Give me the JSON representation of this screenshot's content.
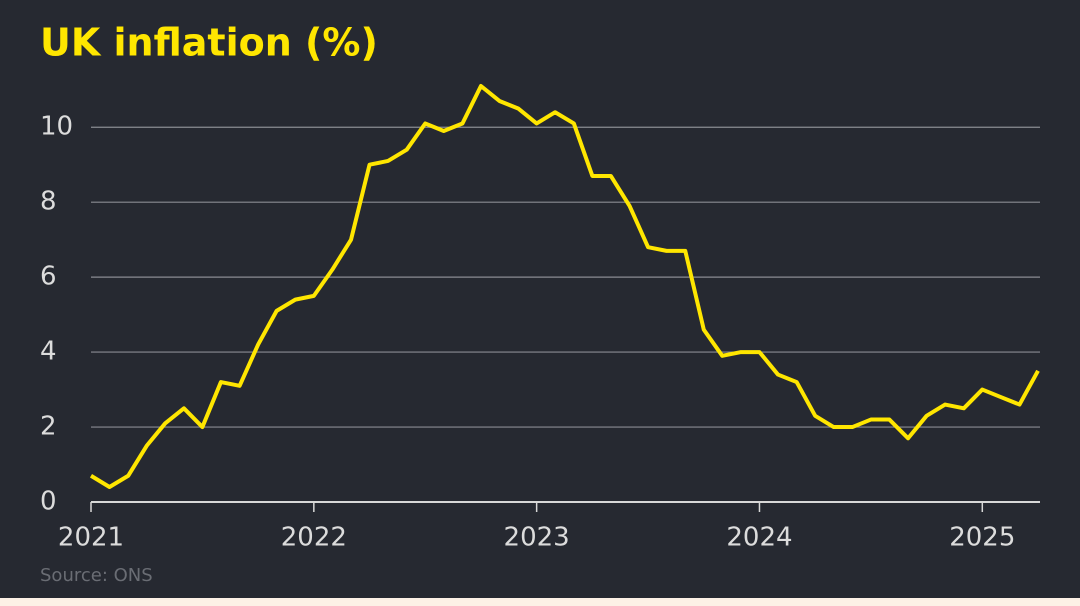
{
  "chart_data": {
    "type": "line",
    "title": "UK inflation (%)",
    "source": "Source: ONS",
    "x": [
      2021,
      2021.083,
      2021.167,
      2021.25,
      2021.333,
      2021.417,
      2021.5,
      2021.583,
      2021.667,
      2021.75,
      2021.833,
      2021.917,
      2022,
      2022.083,
      2022.167,
      2022.25,
      2022.333,
      2022.417,
      2022.5,
      2022.583,
      2022.667,
      2022.75,
      2022.833,
      2022.917,
      2023,
      2023.083,
      2023.167,
      2023.25,
      2023.333,
      2023.417,
      2023.5,
      2023.583,
      2023.667,
      2023.75,
      2023.833,
      2023.917,
      2024,
      2024.083,
      2024.167,
      2024.25,
      2024.333,
      2024.417,
      2024.5,
      2024.583,
      2024.667,
      2024.75,
      2024.833,
      2024.917,
      2025,
      2025.083,
      2025.167,
      2025.25
    ],
    "series": [
      {
        "name": "UK inflation",
        "color": "#ffe600",
        "values": [
          0.7,
          0.4,
          0.7,
          1.5,
          2.1,
          2.5,
          2.0,
          3.2,
          3.1,
          4.2,
          5.1,
          5.4,
          5.5,
          6.2,
          7.0,
          9.0,
          9.1,
          9.4,
          10.1,
          9.9,
          10.1,
          11.1,
          10.7,
          10.5,
          10.1,
          10.4,
          10.1,
          8.7,
          8.7,
          7.9,
          6.8,
          6.7,
          6.7,
          4.6,
          3.9,
          4.0,
          4.0,
          3.4,
          3.2,
          2.3,
          2.0,
          2.0,
          2.2,
          2.2,
          1.7,
          2.3,
          2.6,
          2.5,
          3.0,
          2.8,
          2.6,
          3.5
        ]
      }
    ],
    "xlim": [
      2021,
      2025.25
    ],
    "xticks": [
      2021,
      2022,
      2023,
      2024,
      2025
    ],
    "ylim": [
      0,
      11.5
    ],
    "yticks": [
      0,
      2,
      4,
      6,
      8,
      10
    ],
    "grid": true
  }
}
